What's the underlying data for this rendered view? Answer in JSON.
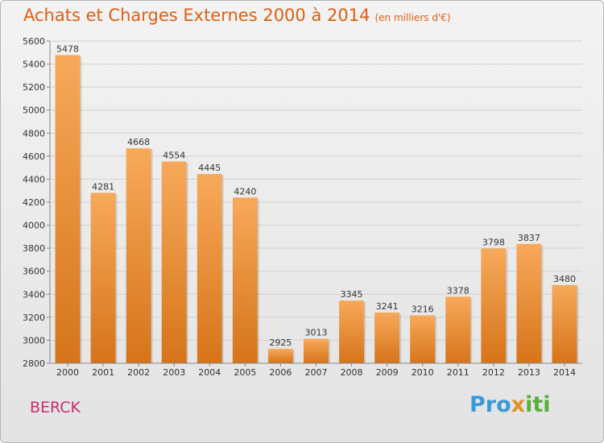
{
  "header": {
    "title": "Achats et Charges Externes 2000 à 2014",
    "unit": "(en milliers d'€)"
  },
  "footer": {
    "city": "BERCK",
    "logo": {
      "part1": "Pro",
      "part2": "x",
      "part3": "iti"
    }
  },
  "colors": {
    "title": "#e05e0f",
    "bar_top": "#f7a95a",
    "bar_bottom": "#d6741a",
    "city": "#cc2a6e"
  },
  "chart_data": {
    "type": "bar",
    "categories": [
      "2000",
      "2001",
      "2002",
      "2003",
      "2004",
      "2005",
      "2006",
      "2007",
      "2008",
      "2009",
      "2010",
      "2011",
      "2012",
      "2013",
      "2014"
    ],
    "values": [
      5478,
      4281,
      4668,
      4554,
      4445,
      4240,
      2925,
      3013,
      3345,
      3241,
      3216,
      3378,
      3798,
      3837,
      3480
    ],
    "ylim": [
      2800,
      5600
    ],
    "yticks": [
      2800,
      3000,
      3200,
      3400,
      3600,
      3800,
      4000,
      4200,
      4400,
      4600,
      4800,
      5000,
      5200,
      5400,
      5600
    ],
    "grid": "horizontal",
    "data_labels": true
  }
}
